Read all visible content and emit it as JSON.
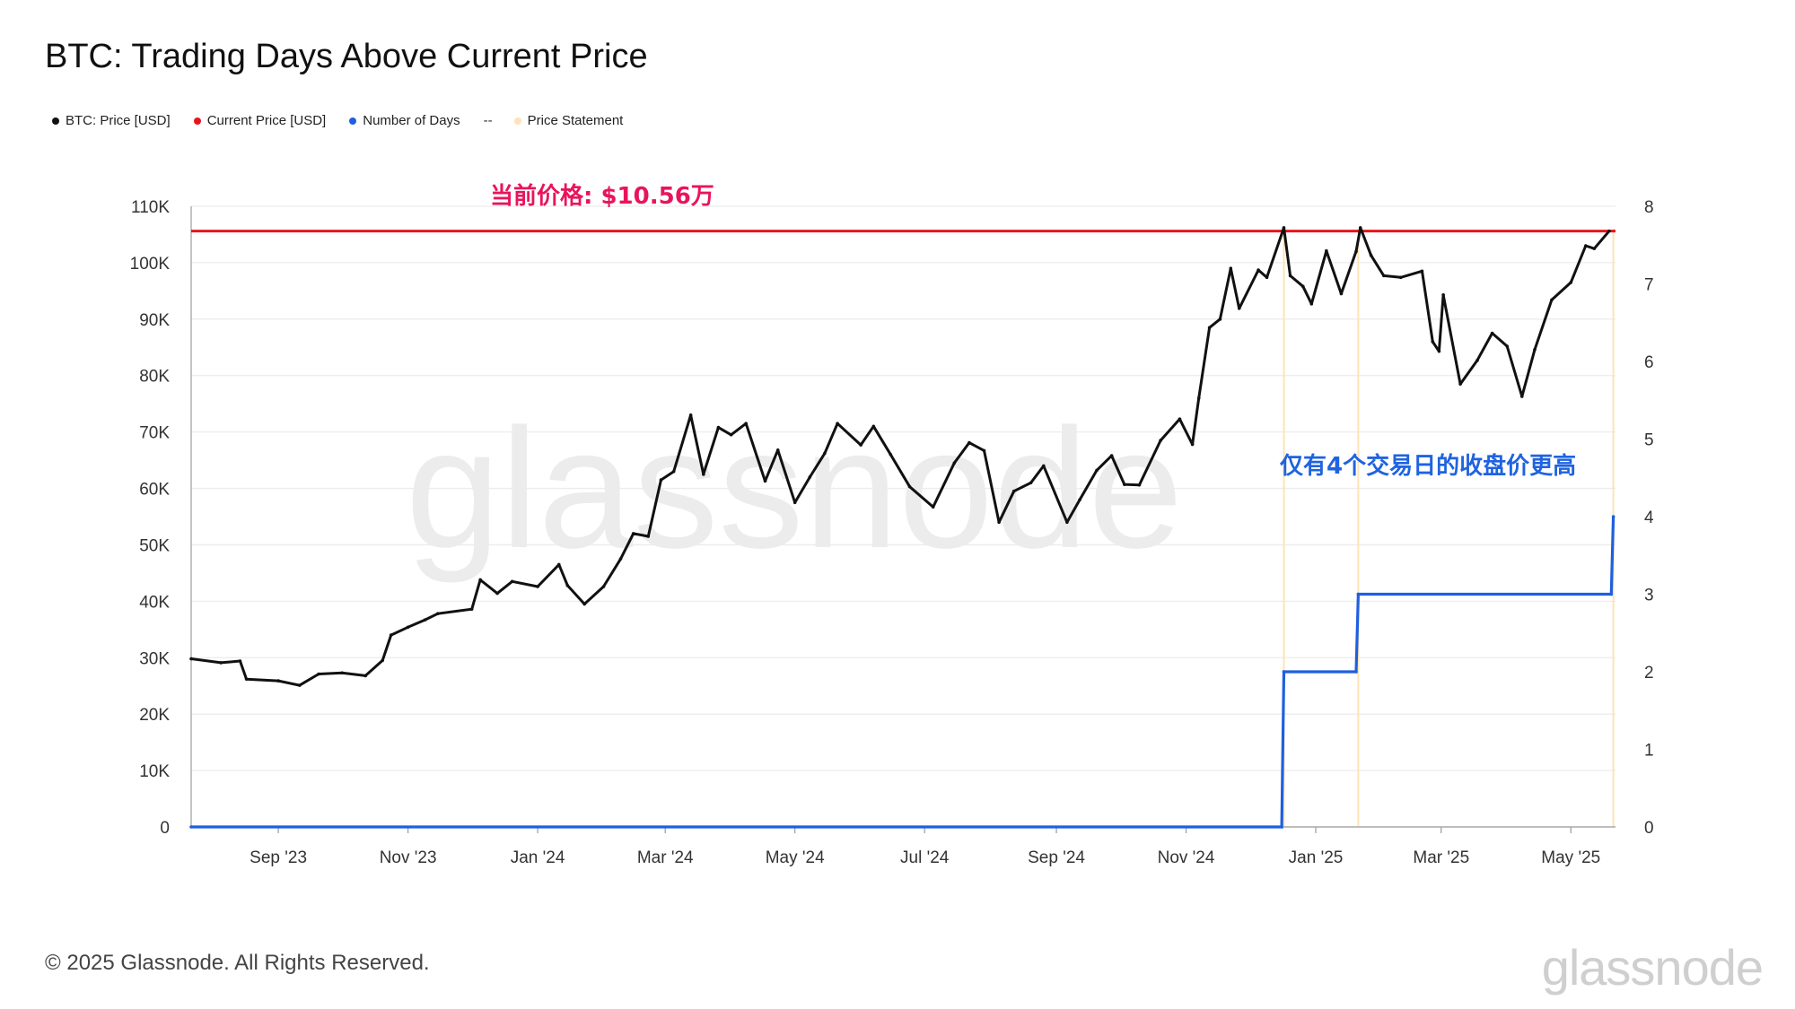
{
  "title": "BTC: Trading Days Above Current Price",
  "legend": [
    {
      "label": "BTC: Price [USD]",
      "color": "#111111"
    },
    {
      "label": "Current Price [USD]",
      "color": "#e8141b"
    },
    {
      "label": "Number of Days",
      "color": "#1f5fe0"
    },
    {
      "label": "Price Statement",
      "color": "#fde3b6"
    }
  ],
  "legend_separator": "--",
  "footer": "© 2025 Glassnode. All Rights Reserved.",
  "brand": "glassnode",
  "watermark": "glassnode",
  "chart_data": {
    "type": "line",
    "title": "BTC: Trading Days Above Current Price",
    "annotations": [
      {
        "text": "当前价格: $10.56万",
        "color": "#e8155b"
      },
      {
        "text": "仅有4个交易日的收盘价更高",
        "color": "#1f63e0"
      }
    ],
    "x_ticks": [
      "Sep '23",
      "Nov '23",
      "Jan '24",
      "Mar '24",
      "May '24",
      "Jul '24",
      "Sep '24",
      "Nov '24",
      "Jan '25",
      "Mar '25",
      "May '25"
    ],
    "x_tick_dates": [
      "2023-09-01",
      "2023-11-01",
      "2024-01-01",
      "2024-03-01",
      "2024-05-01",
      "2024-07-01",
      "2024-09-01",
      "2024-11-01",
      "2025-01-01",
      "2025-03-01",
      "2025-05-01"
    ],
    "x_range": [
      "2023-07-22",
      "2025-05-22"
    ],
    "y_left_ticks": [
      "0",
      "10K",
      "20K",
      "30K",
      "40K",
      "50K",
      "60K",
      "70K",
      "80K",
      "90K",
      "100K",
      "110K"
    ],
    "y_left_range": [
      0,
      110000
    ],
    "y_right_ticks": [
      "0",
      "1",
      "2",
      "3",
      "4",
      "5",
      "6",
      "7",
      "8"
    ],
    "y_right_range": [
      0,
      8
    ],
    "grid": true,
    "legend_position": "top-left",
    "current_price": 105600,
    "series": [
      {
        "name": "BTC: Price [USD]",
        "axis": "left",
        "color": "#111111",
        "points": [
          [
            "2023-07-22",
            29800
          ],
          [
            "2023-08-05",
            29100
          ],
          [
            "2023-08-14",
            29400
          ],
          [
            "2023-08-17",
            26200
          ],
          [
            "2023-09-01",
            25900
          ],
          [
            "2023-09-11",
            25100
          ],
          [
            "2023-09-20",
            27100
          ],
          [
            "2023-10-01",
            27300
          ],
          [
            "2023-10-12",
            26800
          ],
          [
            "2023-10-20",
            29500
          ],
          [
            "2023-10-24",
            34000
          ],
          [
            "2023-11-01",
            35400
          ],
          [
            "2023-11-09",
            36700
          ],
          [
            "2023-11-15",
            37800
          ],
          [
            "2023-12-01",
            38600
          ],
          [
            "2023-12-05",
            43800
          ],
          [
            "2023-12-13",
            41400
          ],
          [
            "2023-12-20",
            43500
          ],
          [
            "2024-01-01",
            42600
          ],
          [
            "2024-01-11",
            46500
          ],
          [
            "2024-01-15",
            42800
          ],
          [
            "2024-01-23",
            39500
          ],
          [
            "2024-02-01",
            42600
          ],
          [
            "2024-02-09",
            47500
          ],
          [
            "2024-02-15",
            52000
          ],
          [
            "2024-02-22",
            51500
          ],
          [
            "2024-02-28",
            61500
          ],
          [
            "2024-03-05",
            63000
          ],
          [
            "2024-03-13",
            73000
          ],
          [
            "2024-03-19",
            62500
          ],
          [
            "2024-03-26",
            70800
          ],
          [
            "2024-04-01",
            69500
          ],
          [
            "2024-04-08",
            71500
          ],
          [
            "2024-04-17",
            61300
          ],
          [
            "2024-04-23",
            66800
          ],
          [
            "2024-05-01",
            57500
          ],
          [
            "2024-05-08",
            62000
          ],
          [
            "2024-05-15",
            66200
          ],
          [
            "2024-05-21",
            71500
          ],
          [
            "2024-06-01",
            67700
          ],
          [
            "2024-06-07",
            71000
          ],
          [
            "2024-06-15",
            66000
          ],
          [
            "2024-06-24",
            60300
          ],
          [
            "2024-07-05",
            56700
          ],
          [
            "2024-07-15",
            64500
          ],
          [
            "2024-07-22",
            68100
          ],
          [
            "2024-07-29",
            66700
          ],
          [
            "2024-08-05",
            54000
          ],
          [
            "2024-08-12",
            59500
          ],
          [
            "2024-08-20",
            61000
          ],
          [
            "2024-08-26",
            64000
          ],
          [
            "2024-09-06",
            54000
          ],
          [
            "2024-09-12",
            58000
          ],
          [
            "2024-09-20",
            63200
          ],
          [
            "2024-09-27",
            65800
          ],
          [
            "2024-10-03",
            60700
          ],
          [
            "2024-10-10",
            60600
          ],
          [
            "2024-10-20",
            68500
          ],
          [
            "2024-10-29",
            72300
          ],
          [
            "2024-11-04",
            67800
          ],
          [
            "2024-11-07",
            76000
          ],
          [
            "2024-11-12",
            88500
          ],
          [
            "2024-11-17",
            90000
          ],
          [
            "2024-11-22",
            99000
          ],
          [
            "2024-11-26",
            91900
          ],
          [
            "2024-12-05",
            98700
          ],
          [
            "2024-12-09",
            97400
          ],
          [
            "2024-12-17",
            106200
          ],
          [
            "2024-12-20",
            97700
          ],
          [
            "2024-12-26",
            95800
          ],
          [
            "2024-12-30",
            92700
          ],
          [
            "2025-01-06",
            102100
          ],
          [
            "2025-01-13",
            94500
          ],
          [
            "2025-01-20",
            102000
          ],
          [
            "2025-01-22",
            106200
          ],
          [
            "2025-01-27",
            101300
          ],
          [
            "2025-02-02",
            97700
          ],
          [
            "2025-02-10",
            97400
          ],
          [
            "2025-02-20",
            98500
          ],
          [
            "2025-02-25",
            86000
          ],
          [
            "2025-02-28",
            84300
          ],
          [
            "2025-03-02",
            94300
          ],
          [
            "2025-03-10",
            78500
          ],
          [
            "2025-03-18",
            82700
          ],
          [
            "2025-03-25",
            87500
          ],
          [
            "2025-04-01",
            85200
          ],
          [
            "2025-04-08",
            76300
          ],
          [
            "2025-04-14",
            84600
          ],
          [
            "2025-04-22",
            93400
          ],
          [
            "2025-05-01",
            96500
          ],
          [
            "2025-05-08",
            103000
          ],
          [
            "2025-05-12",
            102500
          ],
          [
            "2025-05-19",
            105600
          ]
        ]
      },
      {
        "name": "Number of Days",
        "axis": "right",
        "color": "#1f5fe0",
        "points": [
          [
            "2023-07-22",
            0
          ],
          [
            "2024-12-16",
            0
          ],
          [
            "2024-12-17",
            2
          ],
          [
            "2025-01-20",
            2
          ],
          [
            "2025-01-21",
            3
          ],
          [
            "2025-05-20",
            3
          ],
          [
            "2025-05-21",
            4
          ]
        ]
      },
      {
        "name": "Current Price [USD]",
        "axis": "left",
        "color": "#e8141b",
        "value": 105600
      }
    ],
    "price_statement_dates": [
      "2024-12-17",
      "2025-01-21",
      "2025-05-21"
    ]
  }
}
